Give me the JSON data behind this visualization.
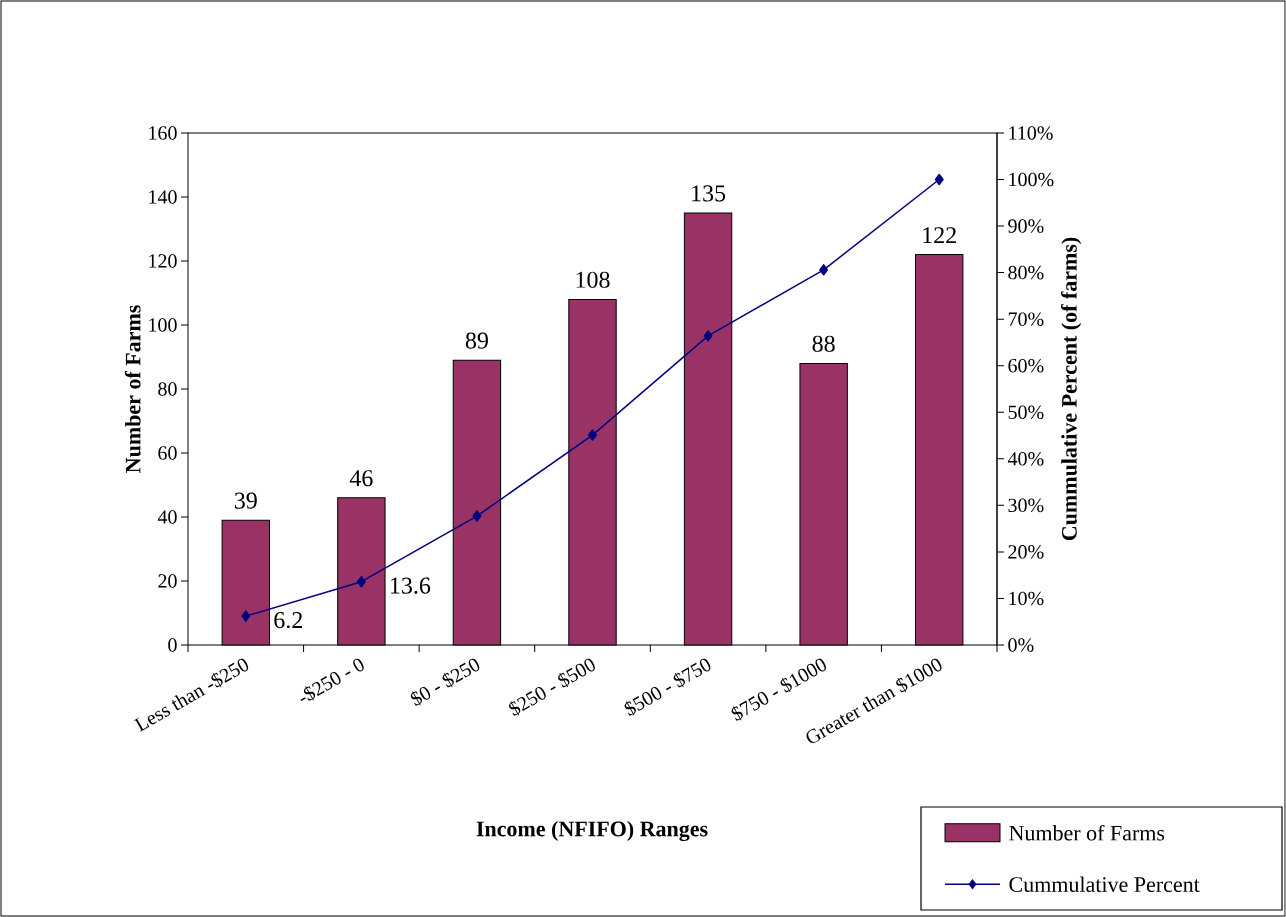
{
  "chart_data": {
    "type": "bar",
    "xlabel": "Income (NFIFO) Ranges",
    "ylabel": "Number of Farms",
    "y2label": "Cummulative Percent (of farms)",
    "categories": [
      "Less than -$250",
      "-$250 - 0",
      "$0 - $250",
      "$250 - $500",
      "$500 - $750",
      "$750 - $1000",
      "Greater than $1000"
    ],
    "series": [
      {
        "name": "Number of Farms",
        "color": "#993366",
        "values": [
          39,
          46,
          89,
          108,
          135,
          88,
          122
        ],
        "value_labels": [
          "39",
          "46",
          "89",
          "108",
          "135",
          "88",
          "122"
        ]
      },
      {
        "name": "Cummulative Percent",
        "type": "line",
        "axis": "y2",
        "color": "#000080",
        "marker": "diamond",
        "values": [
          6.2,
          13.6,
          27.7,
          45.1,
          66.4,
          80.6,
          100
        ],
        "value_labels": [
          "6.2",
          "13.6",
          null,
          null,
          null,
          null,
          null
        ]
      }
    ],
    "ylim": [
      0,
      160
    ],
    "yticks": [
      0,
      20,
      40,
      60,
      80,
      100,
      120,
      140,
      160
    ],
    "y2lim": [
      0,
      110
    ],
    "y2ticks": [
      {
        "value": 0,
        "label": "0%"
      },
      {
        "value": 10,
        "label": "10%"
      },
      {
        "value": 20,
        "label": "20%"
      },
      {
        "value": 30,
        "label": "30%"
      },
      {
        "value": 40,
        "label": "40%"
      },
      {
        "value": 50,
        "label": "50%"
      },
      {
        "value": 60,
        "label": "60%"
      },
      {
        "value": 70,
        "label": "70%"
      },
      {
        "value": 80,
        "label": "80%"
      },
      {
        "value": 90,
        "label": "90%"
      },
      {
        "value": 100,
        "label": "100%"
      },
      {
        "value": 110,
        "label": "110%"
      }
    ],
    "legend": "bottom right"
  }
}
